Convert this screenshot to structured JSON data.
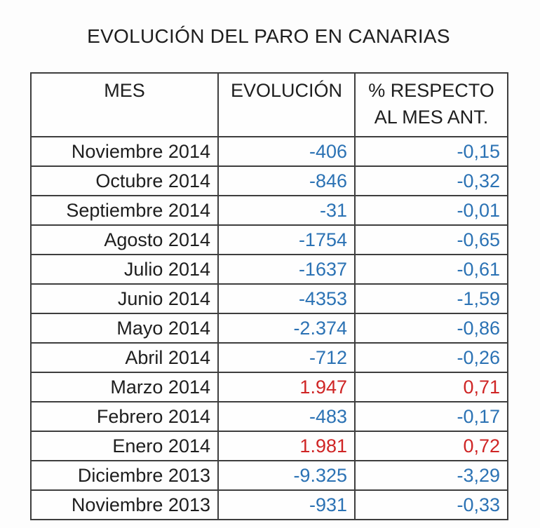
{
  "title": "EVOLUCIÓN DEL PARO EN CANARIAS",
  "colors": {
    "decrease": "#2b72b4",
    "increase": "#cf2525",
    "text": "#1e1e1e",
    "border": "#3e3e3e"
  },
  "table": {
    "headers": {
      "mes": "MES",
      "evolucion": "EVOLUCIÓN",
      "pct_line1": "% RESPECTO",
      "pct_line2": "AL MES ANT."
    },
    "rows": [
      {
        "mes": "Noviembre 2014",
        "evolucion": "-406",
        "pct": "-0,15",
        "trend": "decrease"
      },
      {
        "mes": "Octubre 2014",
        "evolucion": "-846",
        "pct": "-0,32",
        "trend": "decrease"
      },
      {
        "mes": "Septiembre 2014",
        "evolucion": "-31",
        "pct": "-0,01",
        "trend": "decrease"
      },
      {
        "mes": "Agosto 2014",
        "evolucion": "-1754",
        "pct": "-0,65",
        "trend": "decrease"
      },
      {
        "mes": "Julio 2014",
        "evolucion": "-1637",
        "pct": "-0,61",
        "trend": "decrease"
      },
      {
        "mes": "Junio 2014",
        "evolucion": "-4353",
        "pct": "-1,59",
        "trend": "decrease"
      },
      {
        "mes": "Mayo 2014",
        "evolucion": "-2.374",
        "pct": "-0,86",
        "trend": "decrease"
      },
      {
        "mes": "Abril 2014",
        "evolucion": "-712",
        "pct": "-0,26",
        "trend": "decrease"
      },
      {
        "mes": "Marzo 2014",
        "evolucion": "1.947",
        "pct": "0,71",
        "trend": "increase"
      },
      {
        "mes": "Febrero 2014",
        "evolucion": "-483",
        "pct": "-0,17",
        "trend": "decrease"
      },
      {
        "mes": "Enero 2014",
        "evolucion": "1.981",
        "pct": "0,72",
        "trend": "increase"
      },
      {
        "mes": "Diciembre 2013",
        "evolucion": "-9.325",
        "pct": "-3,29",
        "trend": "decrease"
      },
      {
        "mes": "Noviembre 2013",
        "evolucion": "-931",
        "pct": "-0,33",
        "trend": "decrease"
      }
    ]
  },
  "chart_data": {
    "type": "table",
    "title": "EVOLUCIÓN DEL PARO EN CANARIAS",
    "columns": [
      "MES",
      "EVOLUCIÓN",
      "% RESPECTO AL MES ANT."
    ],
    "rows": [
      [
        "Noviembre 2014",
        -406,
        -0.15
      ],
      [
        "Octubre 2014",
        -846,
        -0.32
      ],
      [
        "Septiembre 2014",
        -31,
        -0.01
      ],
      [
        "Agosto 2014",
        -1754,
        -0.65
      ],
      [
        "Julio 2014",
        -1637,
        -0.61
      ],
      [
        "Junio 2014",
        -4353,
        -1.59
      ],
      [
        "Mayo 2014",
        -2374,
        -0.86
      ],
      [
        "Abril 2014",
        -712,
        -0.26
      ],
      [
        "Marzo 2014",
        1947,
        0.71
      ],
      [
        "Febrero 2014",
        -483,
        -0.17
      ],
      [
        "Enero 2014",
        1981,
        0.72
      ],
      [
        "Diciembre 2013",
        -9325,
        -3.29
      ],
      [
        "Noviembre 2013",
        -931,
        -0.33
      ]
    ],
    "notes": "Negative values rendered in blue, positive values in red"
  }
}
